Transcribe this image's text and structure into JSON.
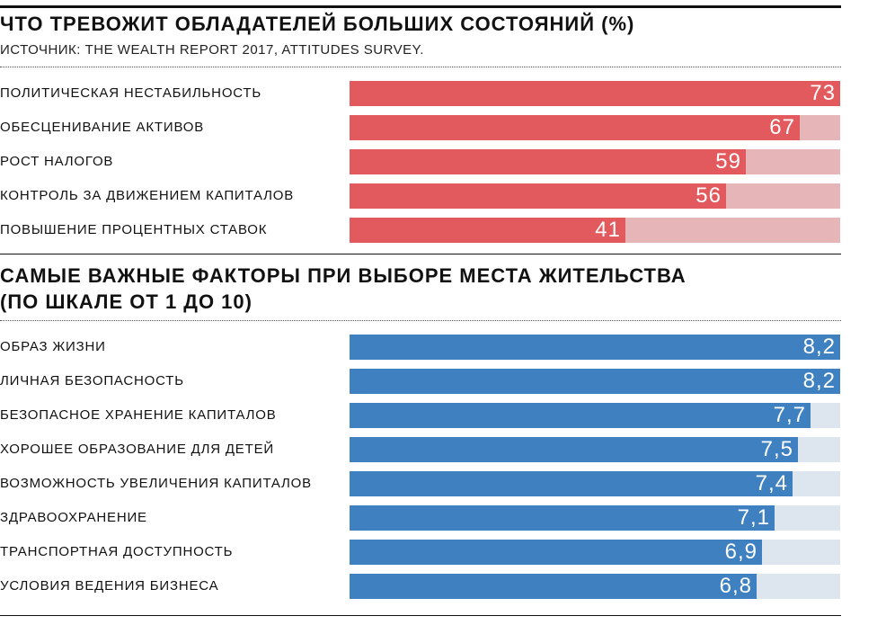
{
  "chart_data": [
    {
      "type": "bar",
      "orientation": "horizontal",
      "title": "ЧТО ТРЕВОЖИТ ОБЛАДАТЕЛЕЙ БОЛЬШИХ СОСТОЯНИЙ (%)",
      "subtitle": "ИСТОЧНИК: THE WEALTH REPORT 2017, ATTITUDES SURVEY.",
      "categories": [
        "ПОЛИТИЧЕСКАЯ НЕСТАБИЛЬНОСТЬ",
        "ОБЕСЦЕНИВАНИЕ АКТИВОВ",
        "РОСТ НАЛОГОВ",
        "КОНТРОЛЬ ЗА ДВИЖЕНИЕМ КАПИТАЛОВ",
        "ПОВЫШЕНИЕ ПРОЦЕНТНЫХ СТАВОК"
      ],
      "values": [
        73,
        67,
        59,
        56,
        41
      ],
      "value_labels": [
        "73",
        "67",
        "59",
        "56",
        "41"
      ],
      "xlim": [
        0,
        73
      ],
      "bar_color": "#e35a5e",
      "track_color": "#e5b5b8"
    },
    {
      "type": "bar",
      "orientation": "horizontal",
      "title_lines": [
        "САМЫЕ ВАЖНЫЕ ФАКТОРЫ ПРИ ВЫБОРЕ МЕСТА ЖИТЕЛЬСТВА",
        "(ПО ШКАЛЕ ОТ 1 ДО 10)"
      ],
      "categories": [
        "ОБРАЗ ЖИЗНИ",
        "ЛИЧНАЯ БЕЗОПАСНОСТЬ",
        "БЕЗОПАСНОЕ ХРАНЕНИЕ КАПИТАЛОВ",
        "ХОРОШЕЕ ОБРАЗОВАНИЕ ДЛЯ ДЕТЕЙ",
        "ВОЗМОЖНОСТЬ УВЕЛИЧЕНИЯ КАПИТАЛОВ",
        "ЗДРАВООХРАНЕНИЕ",
        "ТРАНСПОРТНАЯ ДОСТУПНОСТЬ",
        "УСЛОВИЯ ВЕДЕНИЯ БИЗНЕСА"
      ],
      "values": [
        8.2,
        8.2,
        7.7,
        7.5,
        7.4,
        7.1,
        6.9,
        6.8
      ],
      "value_labels": [
        "8,2",
        "8,2",
        "7,7",
        "7,5",
        "7,4",
        "7,1",
        "6,9",
        "6,8"
      ],
      "xlim": [
        0,
        8.2
      ],
      "bar_color": "#3f80c1",
      "track_color": "#dde6ee"
    }
  ]
}
